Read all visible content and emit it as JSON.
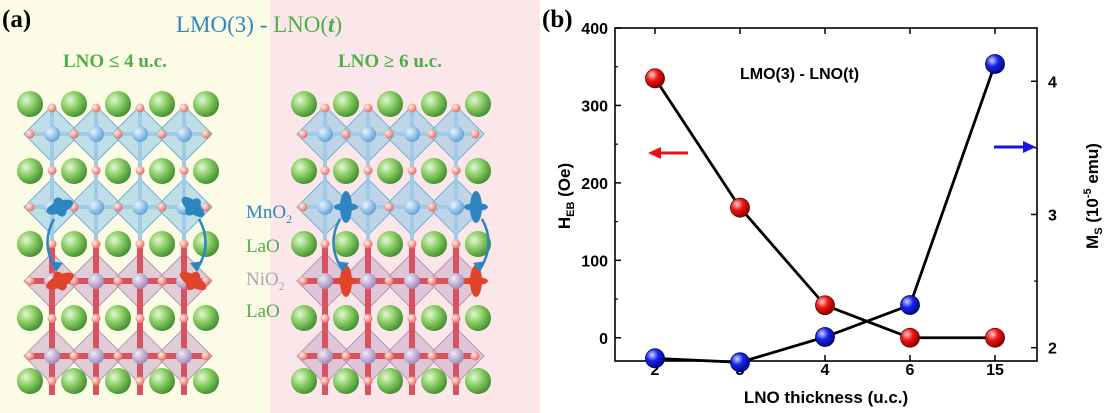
{
  "panel_a": {
    "label": "(a)",
    "title_lmo": "LMO(3)",
    "title_dash": " - ",
    "title_lno": "LNO(",
    "title_t": "t",
    "title_close": ")",
    "left_caption": "LNO ≤ 4 u.c.",
    "right_caption": "LNO ≥ 6 u.c.",
    "layer_mno2": "MnO",
    "layer_mno2_sub": "2",
    "layer_lao_1": "LaO",
    "layer_nio2": "NiO",
    "layer_nio2_sub": "2",
    "layer_lao_2": "LaO",
    "colors": {
      "left_bg": "#fbfbe6",
      "right_bg": "#fbe6e9",
      "mn_octa": "#8ec6e6",
      "ni_octa": "#c8a9c6",
      "la_sphere": "#6bbf4a",
      "oxygen": "#f08a80",
      "bond_red": "#d8535f",
      "mn_orbital": "#2e86c1",
      "ni_orbital": "#e0442b",
      "title_blue": "#2e86c1",
      "title_green": "#4fae48"
    }
  },
  "panel_b": {
    "label": "(b)",
    "annotation": "LMO(3) - LNO(t)",
    "xlabel": "LNO thickness (u.c.)",
    "ylabel_left_main": "H",
    "ylabel_left_sub": "EB",
    "ylabel_left_unit": " (Oe)",
    "ylabel_right_main": "M",
    "ylabel_right_sub": "S",
    "ylabel_right_unit_pre": " (10",
    "ylabel_right_sup": "-5",
    "ylabel_right_unit_post": " emu)"
  },
  "chart_data": {
    "type": "line",
    "title": "LMO(3) - LNO(t)",
    "xlabel": "LNO thickness (u.c.)",
    "categories": [
      "2",
      "3",
      "4",
      "6",
      "15"
    ],
    "ylabel": "HEB (Oe)",
    "ylim": [
      -30,
      400
    ],
    "yticks": [
      0,
      100,
      200,
      300,
      400
    ],
    "y2label": "MS (10-5 emu)",
    "y2lim": [
      1.9,
      4.4
    ],
    "y2ticks": [
      2,
      3,
      4
    ],
    "grid": false,
    "series": [
      {
        "axis": "left",
        "color": "#e81010",
        "values": [
          335,
          168,
          42,
          0,
          0
        ]
      },
      {
        "axis": "right",
        "color": "#1515e0",
        "values": [
          1.92,
          1.89,
          2.08,
          2.32,
          4.13
        ]
      }
    ]
  }
}
